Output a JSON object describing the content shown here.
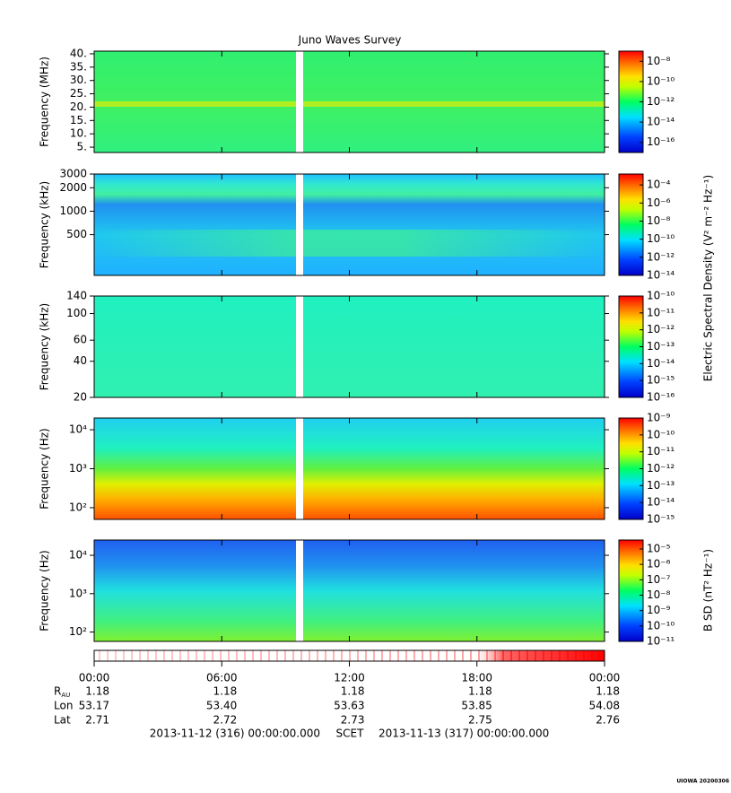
{
  "chart_data": {
    "type": "spectrogram",
    "title": "Juno Waves Survey",
    "xlim": [
      0,
      24
    ],
    "xticks": [
      {
        "value": 0,
        "label": "00:00"
      },
      {
        "value": 6,
        "label": "06:00"
      },
      {
        "value": 12,
        "label": "12:00"
      },
      {
        "value": 18,
        "label": "18:00"
      },
      {
        "value": 24,
        "label": "00:00"
      }
    ],
    "panels": [
      {
        "ylabel": "Frequency (MHz)",
        "log": false,
        "ylim": [
          3,
          41
        ],
        "yticks": [
          {
            "value": 5,
            "label": "5."
          },
          {
            "value": 10,
            "label": "10."
          },
          {
            "value": 15,
            "label": "15."
          },
          {
            "value": 20,
            "label": "20."
          },
          {
            "value": 25,
            "label": "25."
          },
          {
            "value": 30,
            "label": "30."
          },
          {
            "value": 35,
            "label": "35."
          },
          {
            "value": 40,
            "label": "40."
          }
        ],
        "clim": [
          1e-17,
          1e-07
        ],
        "cticks": [
          {
            "value": 1e-16,
            "label": "10⁻¹⁶"
          },
          {
            "value": 1e-14,
            "label": "10⁻¹⁴"
          },
          {
            "value": 1e-12,
            "label": "10⁻¹²"
          },
          {
            "value": 1e-10,
            "label": "10⁻¹⁰"
          },
          {
            "value": 1e-08,
            "label": "10⁻⁸"
          }
        ]
      },
      {
        "ylabel": "Frequency (kHz)",
        "log": true,
        "ylim": [
          150,
          3000
        ],
        "yticks": [
          500,
          1000,
          2000,
          3000
        ],
        "clim": [
          1e-14,
          0.0016
        ],
        "cticks": [
          {
            "value": 1e-14,
            "label": "10⁻¹⁴"
          },
          {
            "value": 1e-12,
            "label": "10⁻¹²"
          },
          {
            "value": 1e-10,
            "label": "10⁻¹⁰"
          },
          {
            "value": 1e-08,
            "label": "10⁻⁸"
          },
          {
            "value": 1e-06,
            "label": "10⁻⁶"
          },
          {
            "value": 0.0001,
            "label": "10⁻⁴"
          }
        ]
      },
      {
        "ylabel": "Frequency (kHz)",
        "log": true,
        "ylim": [
          20,
          140
        ],
        "yticks": [
          20,
          40,
          60,
          100,
          140
        ],
        "clim": [
          1e-16,
          1e-10
        ],
        "cticks": [
          {
            "value": 1e-16,
            "label": "10⁻¹⁶"
          },
          {
            "value": 1e-15,
            "label": "10⁻¹⁵"
          },
          {
            "value": 1e-14,
            "label": "10⁻¹⁴"
          },
          {
            "value": 1e-13,
            "label": "10⁻¹³"
          },
          {
            "value": 1e-12,
            "label": "10⁻¹²"
          },
          {
            "value": 1e-11,
            "label": "10⁻¹¹"
          },
          {
            "value": 1e-10,
            "label": "10⁻¹⁰"
          }
        ]
      },
      {
        "ylabel": "Frequency (Hz)",
        "log": true,
        "ylim": [
          50,
          20000
        ],
        "yticks": [
          {
            "value": 100,
            "label": "10²"
          },
          {
            "value": 1000,
            "label": "10³"
          },
          {
            "value": 10000,
            "label": "10⁴"
          }
        ],
        "clim": [
          1e-15,
          1e-09
        ],
        "cticks": [
          {
            "value": 1e-15,
            "label": "10⁻¹⁵"
          },
          {
            "value": 1e-14,
            "label": "10⁻¹⁴"
          },
          {
            "value": 1e-13,
            "label": "10⁻¹³"
          },
          {
            "value": 1e-12,
            "label": "10⁻¹²"
          },
          {
            "value": 1e-11,
            "label": "10⁻¹¹"
          },
          {
            "value": 1e-10,
            "label": "10⁻¹⁰"
          },
          {
            "value": 1e-09,
            "label": "10⁻⁹"
          }
        ]
      },
      {
        "ylabel": "Frequency (Hz)",
        "log": true,
        "ylim": [
          57,
          25000
        ],
        "yticks": [
          {
            "value": 100,
            "label": "10²"
          },
          {
            "value": 1000,
            "label": "10³"
          },
          {
            "value": 10000,
            "label": "10⁴"
          }
        ],
        "clim": [
          1e-11,
          3.8e-05
        ],
        "cticks": [
          {
            "value": 1e-11,
            "label": "10⁻¹¹"
          },
          {
            "value": 1e-10,
            "label": "10⁻¹⁰"
          },
          {
            "value": 1e-09,
            "label": "10⁻⁹"
          },
          {
            "value": 1e-08,
            "label": "10⁻⁸"
          },
          {
            "value": 1e-07,
            "label": "10⁻⁷"
          },
          {
            "value": 1e-06,
            "label": "10⁻⁶"
          },
          {
            "value": 1e-05,
            "label": "10⁻⁵"
          }
        ]
      }
    ],
    "colorbar_labels": [
      "Electric Spectral Density (V² m⁻² Hz⁻¹)",
      "B SD (nT² Hz⁻¹)"
    ],
    "ephemeris": [
      {
        "name": "R",
        "sub": "AU",
        "values": [
          "1.18",
          "1.18",
          "1.18",
          "1.18",
          "1.18"
        ]
      },
      {
        "name": "Lon",
        "values": [
          "53.17",
          "53.40",
          "53.63",
          "53.85",
          "54.08"
        ]
      },
      {
        "name": "Lat",
        "values": [
          "2.71",
          "2.72",
          "2.73",
          "2.75",
          "2.76"
        ]
      }
    ],
    "start": "2013-11-12 (316) 00:00:00.000",
    "time_label": "SCET",
    "end": "2013-11-13 (317) 00:00:00.000",
    "credit": "UIOWA 20200306"
  }
}
